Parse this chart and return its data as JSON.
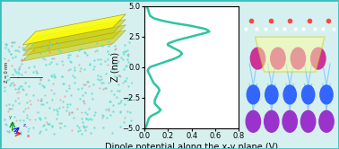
{
  "title": "",
  "xlabel": "Dipole potential along the x-y plane (V)",
  "ylabel": "Z (nm)",
  "xlim": [
    0,
    0.8
  ],
  "ylim": [
    -5.0,
    5.0
  ],
  "xticks": [
    0,
    0.2,
    0.4,
    0.6,
    0.8
  ],
  "yticks": [
    -5.0,
    -2.5,
    0.0,
    2.5,
    5.0
  ],
  "line_color": "#2DC5A2",
  "line_width": 1.8,
  "bg_color": "#FFFFFF",
  "outer_bg": "#D5F0EF",
  "border_color": "#3ABFBF",
  "curve_z": [
    5.0,
    4.8,
    4.5,
    4.2,
    4.0,
    3.8,
    3.6,
    3.4,
    3.2,
    3.1,
    3.0,
    2.9,
    2.8,
    2.7,
    2.6,
    2.5,
    2.4,
    2.3,
    2.2,
    2.1,
    2.0,
    1.9,
    1.8,
    1.7,
    1.5,
    1.3,
    1.1,
    0.9,
    0.7,
    0.5,
    0.3,
    0.1,
    0.0,
    -0.1,
    -0.3,
    -0.5,
    -0.7,
    -0.9,
    -1.1,
    -1.3,
    -1.5,
    -1.7,
    -1.9,
    -2.1,
    -2.3,
    -2.5,
    -2.7,
    -2.9,
    -3.0,
    -3.1,
    -3.2,
    -3.3,
    -3.4,
    -3.5,
    -3.6,
    -3.7,
    -3.8,
    -3.9,
    -4.0,
    -4.2,
    -4.5,
    -4.8,
    -5.0
  ],
  "curve_v": [
    0.02,
    0.03,
    0.04,
    0.05,
    0.08,
    0.15,
    0.25,
    0.38,
    0.48,
    0.52,
    0.54,
    0.55,
    0.52,
    0.48,
    0.44,
    0.4,
    0.36,
    0.32,
    0.28,
    0.25,
    0.22,
    0.2,
    0.2,
    0.22,
    0.26,
    0.3,
    0.32,
    0.3,
    0.26,
    0.2,
    0.14,
    0.08,
    0.05,
    0.04,
    0.03,
    0.04,
    0.05,
    0.06,
    0.07,
    0.08,
    0.1,
    0.12,
    0.13,
    0.12,
    0.11,
    0.1,
    0.09,
    0.09,
    0.09,
    0.1,
    0.11,
    0.12,
    0.13,
    0.14,
    0.13,
    0.12,
    0.1,
    0.08,
    0.06,
    0.04,
    0.03,
    0.02,
    0.01
  ],
  "font_size_label": 7,
  "font_size_tick": 6
}
